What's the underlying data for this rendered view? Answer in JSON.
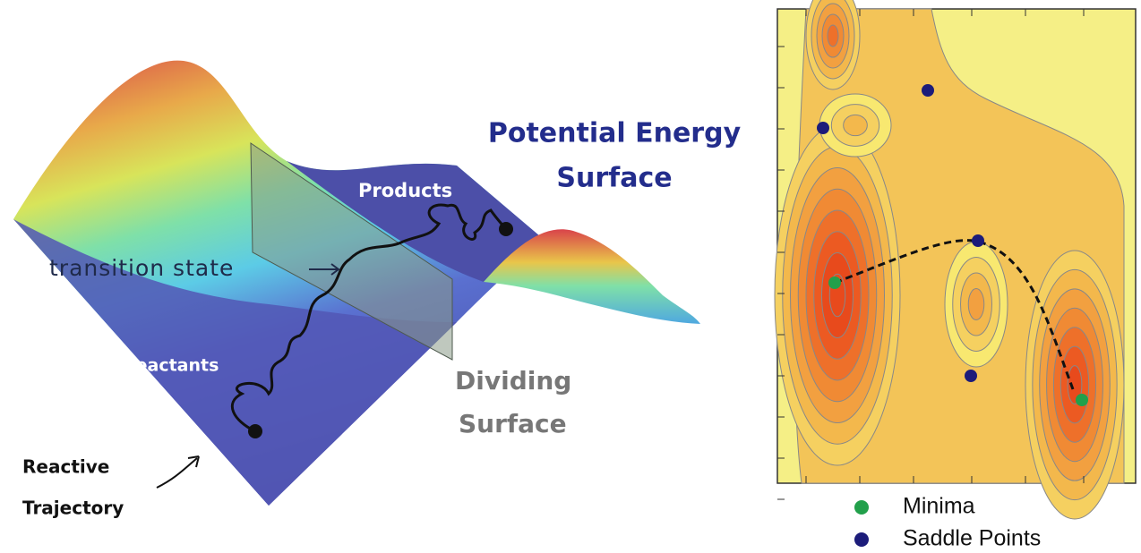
{
  "surface_plot": {
    "title_lines": [
      "Potential Energy",
      "Surface"
    ],
    "products": "Products",
    "transition_state": "transition state",
    "reactants": "Reactants",
    "dividing_surface_lines": [
      "Dividing",
      "Surface"
    ],
    "trajectory_lines": [
      "Reactive",
      "Trajectory"
    ]
  },
  "contour_plot": {
    "legend": [
      {
        "label": "Minima",
        "color": "#22a04b"
      },
      {
        "label": "Saddle Points",
        "color": "#1c1c7a"
      }
    ]
  }
}
